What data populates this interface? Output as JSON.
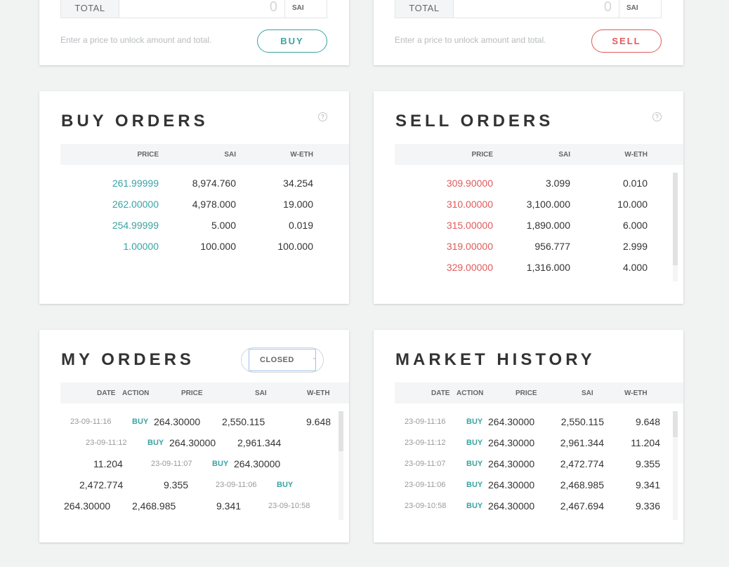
{
  "buy_form": {
    "total_label": "TOTAL",
    "total_value": "0",
    "unit": "SAI",
    "hint": "Enter a price to unlock amount and total.",
    "button": "BUY"
  },
  "sell_form": {
    "total_label": "TOTAL",
    "total_value": "0",
    "unit": "SAI",
    "hint": "Enter a price to unlock amount and total.",
    "button": "SELL"
  },
  "buy_orders": {
    "title": "BUY ORDERS",
    "help": "?",
    "columns": [
      "PRICE",
      "SAI",
      "W-ETH"
    ],
    "rows": [
      [
        "261.99999",
        "8,974.760",
        "34.254"
      ],
      [
        "262.00000",
        "4,978.000",
        "19.000"
      ],
      [
        "254.99999",
        "5.000",
        "0.019"
      ],
      [
        "1.00000",
        "100.000",
        "100.000"
      ]
    ]
  },
  "sell_orders": {
    "title": "SELL ORDERS",
    "help": "?",
    "columns": [
      "PRICE",
      "SAI",
      "W-ETH"
    ],
    "rows": [
      [
        "309.90000",
        "3.099",
        "0.010"
      ],
      [
        "310.00000",
        "3,100.000",
        "10.000"
      ],
      [
        "315.00000",
        "1,890.000",
        "6.000"
      ],
      [
        "319.00000",
        "956.777",
        "2.999"
      ],
      [
        "329.00000",
        "1,316.000",
        "4.000"
      ]
    ]
  },
  "my_orders": {
    "title": "MY ORDERS",
    "filter": "CLOSED",
    "columns": [
      "DATE",
      "ACTION",
      "PRICE",
      "SAI",
      "W-ETH"
    ],
    "rows": [
      [
        "23-09-11:16",
        "BUY",
        "264.30000",
        "2,550.115",
        "9.648"
      ],
      [
        "23-09-11:12",
        "BUY",
        "264.30000",
        "2,961.344",
        "11.204"
      ],
      [
        "23-09-11:07",
        "BUY",
        "264.30000",
        "2,472.774",
        "9.355"
      ],
      [
        "23-09-11:06",
        "BUY",
        "264.30000",
        "2,468.985",
        "9.341"
      ],
      [
        "23-09-10:58",
        "",
        "",
        "",
        ""
      ]
    ]
  },
  "market_history": {
    "title": "MARKET HISTORY",
    "columns": [
      "DATE",
      "ACTION",
      "PRICE",
      "SAI",
      "W-ETH"
    ],
    "rows": [
      [
        "23-09-11:16",
        "BUY",
        "264.30000",
        "2,550.115",
        "9.648"
      ],
      [
        "23-09-11:12",
        "BUY",
        "264.30000",
        "2,961.344",
        "11.204"
      ],
      [
        "23-09-11:07",
        "BUY",
        "264.30000",
        "2,472.774",
        "9.355"
      ],
      [
        "23-09-11:06",
        "BUY",
        "264.30000",
        "2,468.985",
        "9.341"
      ],
      [
        "23-09-10:58",
        "BUY",
        "264.30000",
        "2,467.694",
        "9.336"
      ]
    ]
  },
  "colors": {
    "buy": "#3aa3a3",
    "sell": "#e05a5a"
  }
}
